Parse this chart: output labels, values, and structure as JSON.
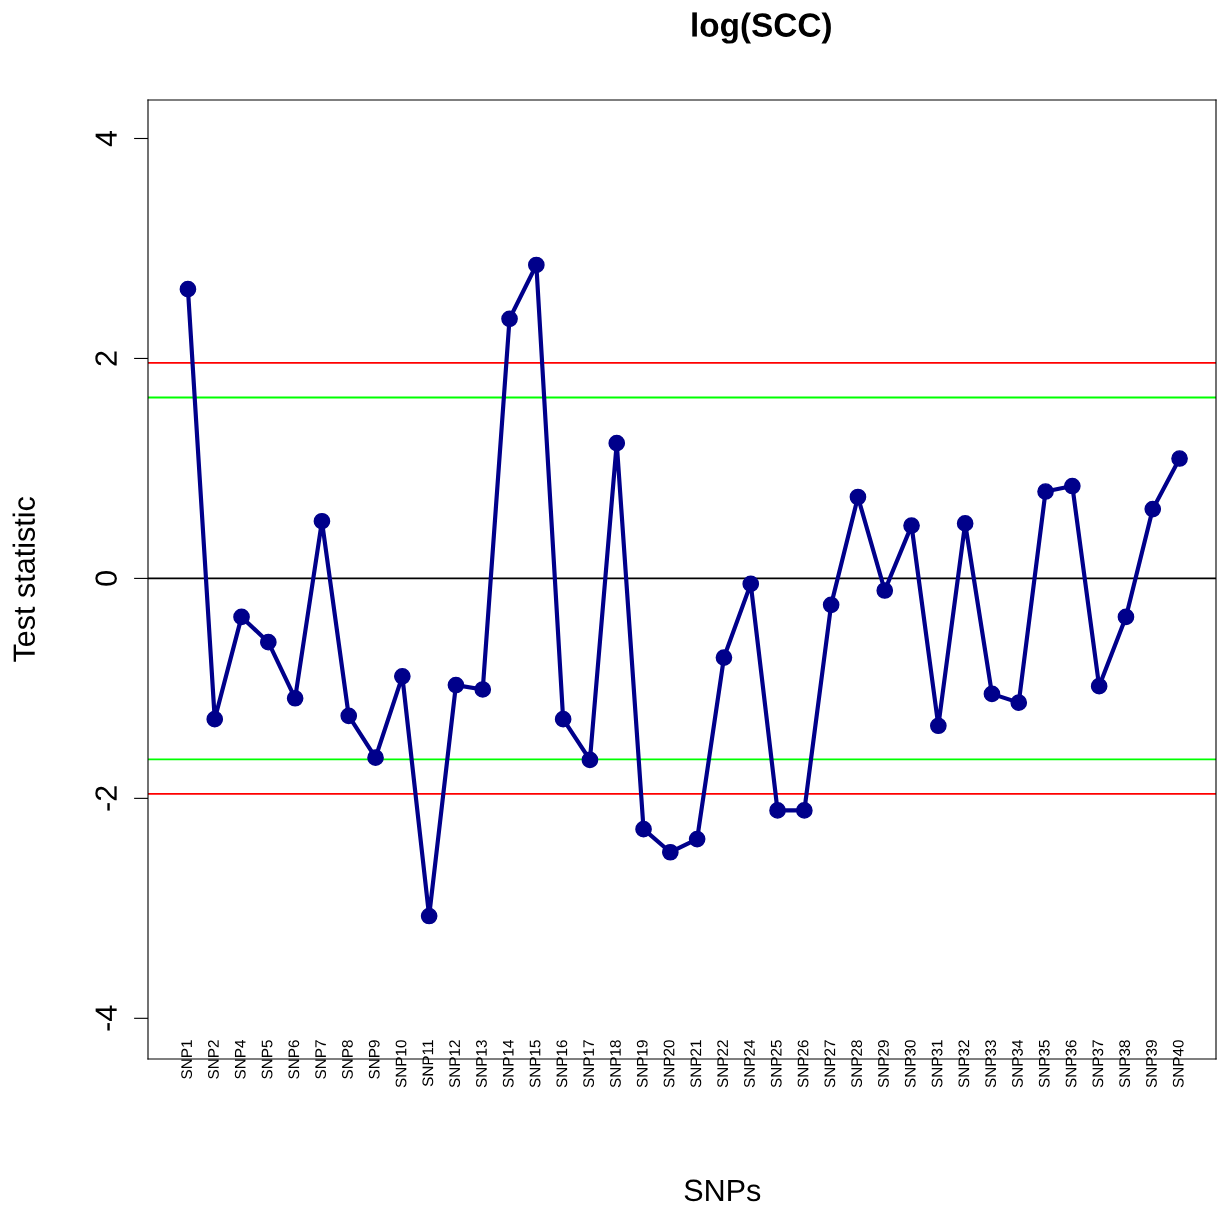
{
  "chart_data": {
    "type": "line",
    "title": "log(SCC)",
    "xlabel": "SNPs",
    "ylabel": "Test statistic",
    "categories": [
      "SNP1",
      "SNP2",
      "SNP4",
      "SNP5",
      "SNP6",
      "SNP7",
      "SNP8",
      "SNP9",
      "SNP10",
      "SNP11",
      "SNP12",
      "SNP13",
      "SNP14",
      "SNP15",
      "SNP16",
      "SNP17",
      "SNP18",
      "SNP19",
      "SNP20",
      "SNP21",
      "SNP22",
      "SNP24",
      "SNP25",
      "SNP26",
      "SNP27",
      "SNP28",
      "SNP29",
      "SNP30",
      "SNP31",
      "SNP32",
      "SNP33",
      "SNP34",
      "SNP35",
      "SNP36",
      "SNP37",
      "SNP38",
      "SNP39",
      "SNP40"
    ],
    "series": [
      {
        "color": "#00008b",
        "values": [
          2.63,
          -1.28,
          -0.35,
          -0.58,
          -1.09,
          0.52,
          -1.25,
          -1.63,
          -0.89,
          -3.07,
          -0.97,
          -1.01,
          2.36,
          2.85,
          -1.28,
          -1.65,
          1.23,
          -2.28,
          -2.49,
          -2.37,
          -0.72,
          -0.05,
          -2.11,
          -2.11,
          -0.24,
          0.74,
          -0.11,
          0.48,
          -1.34,
          0.5,
          -1.05,
          -1.13,
          0.79,
          0.84,
          -0.98,
          -0.35,
          0.63,
          1.09
        ]
      }
    ],
    "ylim": [
      -4.37,
      4.35
    ],
    "yticks": [
      -4,
      -2,
      0,
      2,
      4
    ],
    "marker": "circle",
    "line_style": "solid",
    "grid": false,
    "legend": false,
    "ref_lines": [
      {
        "axis": "y",
        "value": 0,
        "color": "#000000"
      },
      {
        "axis": "y",
        "value": 1.96,
        "color": "#ff0000"
      },
      {
        "axis": "y",
        "value": -1.96,
        "color": "#ff0000"
      },
      {
        "axis": "y",
        "value": 1.645,
        "color": "#00ff00"
      },
      {
        "axis": "y",
        "value": -1.645,
        "color": "#00ff00"
      }
    ]
  }
}
